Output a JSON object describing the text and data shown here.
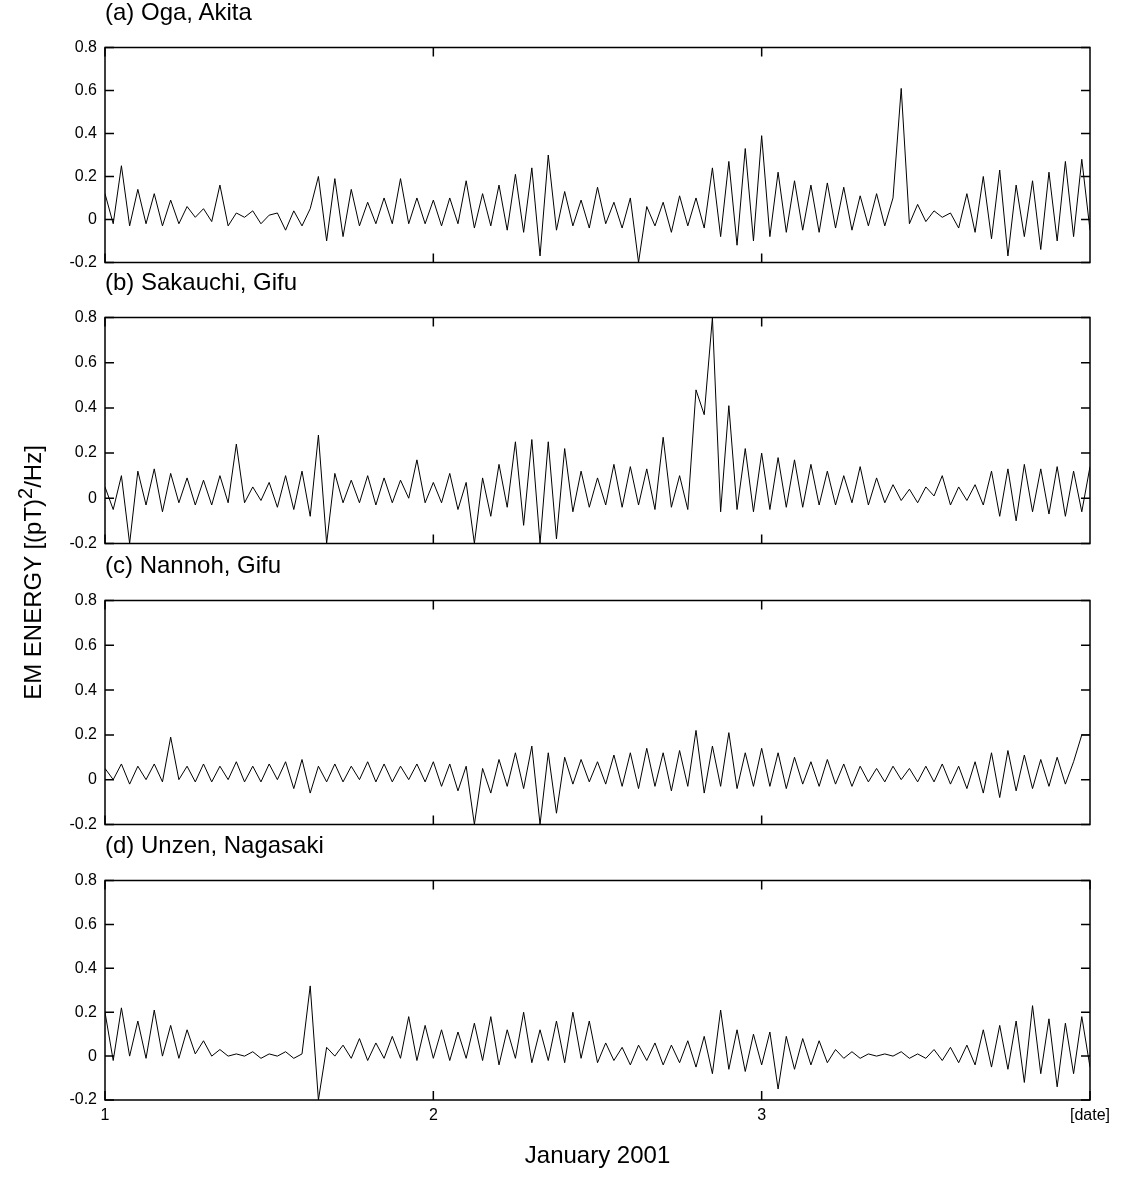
{
  "chart_data": [
    {
      "type": "line",
      "title": "(a) Oga, Akita",
      "tick_labels": "y",
      "xlim": [
        1,
        4
      ],
      "xticks": [
        1,
        2,
        3
      ],
      "ylim": [
        -0.2,
        0.8
      ],
      "yticks": [
        -0.2,
        0,
        0.2,
        0.4,
        0.6,
        0.8
      ],
      "x": [
        1,
        1.025,
        1.05,
        1.075,
        1.1,
        1.125,
        1.15,
        1.175,
        1.2,
        1.225,
        1.25,
        1.275,
        1.3,
        1.325,
        1.35,
        1.375,
        1.4,
        1.425,
        1.45,
        1.475,
        1.5,
        1.525,
        1.55,
        1.575,
        1.6,
        1.625,
        1.65,
        1.675,
        1.7,
        1.725,
        1.75,
        1.775,
        1.8,
        1.825,
        1.85,
        1.875,
        1.9,
        1.925,
        1.95,
        1.975,
        2,
        2.025,
        2.05,
        2.075,
        2.1,
        2.125,
        2.15,
        2.175,
        2.2,
        2.225,
        2.25,
        2.275,
        2.3,
        2.325,
        2.35,
        2.375,
        2.4,
        2.425,
        2.45,
        2.475,
        2.5,
        2.525,
        2.55,
        2.575,
        2.6,
        2.625,
        2.65,
        2.675,
        2.7,
        2.725,
        2.75,
        2.775,
        2.8,
        2.825,
        2.85,
        2.875,
        2.9,
        2.925,
        2.95,
        2.975,
        3,
        3.025,
        3.05,
        3.075,
        3.1,
        3.125,
        3.15,
        3.175,
        3.2,
        3.225,
        3.25,
        3.275,
        3.3,
        3.325,
        3.35,
        3.375,
        3.4,
        3.425,
        3.45,
        3.475,
        3.5,
        3.525,
        3.55,
        3.575,
        3.6,
        3.625,
        3.65,
        3.675,
        3.7,
        3.725,
        3.75,
        3.775,
        3.8,
        3.825,
        3.85,
        3.875,
        3.9,
        3.925,
        3.95,
        3.975,
        4
      ],
      "series": [
        {
          "color": "#000000",
          "values": [
            0.12,
            -0.02,
            0.25,
            -0.03,
            0.14,
            -0.02,
            0.12,
            -0.03,
            0.09,
            -0.02,
            0.06,
            0.01,
            0.05,
            -0.01,
            0.16,
            -0.03,
            0.03,
            0.01,
            0.04,
            -0.02,
            0.02,
            0.03,
            -0.05,
            0.04,
            -0.03,
            0.05,
            0.2,
            -0.1,
            0.19,
            -0.08,
            0.14,
            -0.03,
            0.08,
            -0.02,
            0.1,
            -0.02,
            0.19,
            -0.02,
            0.1,
            -0.02,
            0.09,
            -0.03,
            0.1,
            -0.02,
            0.18,
            -0.04,
            0.12,
            -0.03,
            0.16,
            -0.05,
            0.21,
            -0.06,
            0.24,
            -0.17,
            0.3,
            -0.05,
            0.13,
            -0.03,
            0.09,
            -0.04,
            0.15,
            -0.02,
            0.08,
            -0.04,
            0.1,
            -0.2,
            0.06,
            -0.03,
            0.08,
            -0.06,
            0.11,
            -0.03,
            0.1,
            -0.04,
            0.24,
            -0.08,
            0.27,
            -0.12,
            0.33,
            -0.1,
            0.39,
            -0.08,
            0.22,
            -0.06,
            0.18,
            -0.05,
            0.16,
            -0.06,
            0.17,
            -0.04,
            0.15,
            -0.05,
            0.11,
            -0.03,
            0.12,
            -0.03,
            0.1,
            0.61,
            -0.02,
            0.07,
            -0.01,
            0.04,
            0.01,
            0.03,
            -0.04,
            0.12,
            -0.06,
            0.2,
            -0.09,
            0.23,
            -0.17,
            0.16,
            -0.08,
            0.18,
            -0.14,
            0.22,
            -0.1,
            0.27,
            -0.08,
            0.28,
            -0.05
          ]
        }
      ]
    },
    {
      "type": "line",
      "title": "(b) Sakauchi, Gifu",
      "ylabel": "EM ENERGY  [(pT)$^{2}$/Hz]",
      "tick_labels": "y",
      "xlim": [
        1,
        4
      ],
      "xticks": [
        1,
        2,
        3
      ],
      "ylim": [
        -0.2,
        0.8
      ],
      "yticks": [
        -0.2,
        0,
        0.2,
        0.4,
        0.6,
        0.8
      ],
      "x": [
        1,
        1.025,
        1.05,
        1.075,
        1.1,
        1.125,
        1.15,
        1.175,
        1.2,
        1.225,
        1.25,
        1.275,
        1.3,
        1.325,
        1.35,
        1.375,
        1.4,
        1.425,
        1.45,
        1.475,
        1.5,
        1.525,
        1.55,
        1.575,
        1.6,
        1.625,
        1.65,
        1.675,
        1.7,
        1.725,
        1.75,
        1.775,
        1.8,
        1.825,
        1.85,
        1.875,
        1.9,
        1.925,
        1.95,
        1.975,
        2,
        2.025,
        2.05,
        2.075,
        2.1,
        2.125,
        2.15,
        2.175,
        2.2,
        2.225,
        2.25,
        2.275,
        2.3,
        2.325,
        2.35,
        2.375,
        2.4,
        2.425,
        2.45,
        2.475,
        2.5,
        2.525,
        2.55,
        2.575,
        2.6,
        2.625,
        2.65,
        2.675,
        2.7,
        2.725,
        2.75,
        2.775,
        2.8,
        2.825,
        2.85,
        2.875,
        2.9,
        2.925,
        2.95,
        2.975,
        3,
        3.025,
        3.05,
        3.075,
        3.1,
        3.125,
        3.15,
        3.175,
        3.2,
        3.225,
        3.25,
        3.275,
        3.3,
        3.325,
        3.35,
        3.375,
        3.4,
        3.425,
        3.45,
        3.475,
        3.5,
        3.525,
        3.55,
        3.575,
        3.6,
        3.625,
        3.65,
        3.675,
        3.7,
        3.725,
        3.75,
        3.775,
        3.8,
        3.825,
        3.85,
        3.875,
        3.9,
        3.925,
        3.95,
        3.975,
        4
      ],
      "series": [
        {
          "color": "#000000",
          "values": [
            0.05,
            -0.05,
            0.1,
            -0.2,
            0.12,
            -0.03,
            0.13,
            -0.06,
            0.11,
            -0.02,
            0.09,
            -0.03,
            0.08,
            -0.03,
            0.1,
            -0.02,
            0.24,
            -0.02,
            0.05,
            -0.01,
            0.07,
            -0.04,
            0.1,
            -0.05,
            0.12,
            -0.08,
            0.28,
            -0.2,
            0.11,
            -0.02,
            0.08,
            -0.02,
            0.1,
            -0.03,
            0.09,
            -0.02,
            0.08,
            0.0,
            0.17,
            -0.02,
            0.07,
            -0.02,
            0.11,
            -0.05,
            0.07,
            -0.2,
            0.09,
            -0.08,
            0.15,
            -0.04,
            0.25,
            -0.12,
            0.26,
            -0.2,
            0.25,
            -0.18,
            0.22,
            -0.06,
            0.12,
            -0.04,
            0.09,
            -0.03,
            0.15,
            -0.04,
            0.14,
            -0.03,
            0.13,
            -0.05,
            0.27,
            -0.04,
            0.1,
            -0.05,
            0.48,
            0.37,
            0.8,
            -0.06,
            0.41,
            -0.05,
            0.22,
            -0.06,
            0.2,
            -0.05,
            0.18,
            -0.04,
            0.17,
            -0.04,
            0.15,
            -0.03,
            0.12,
            -0.03,
            0.1,
            -0.02,
            0.14,
            -0.03,
            0.09,
            -0.02,
            0.06,
            -0.01,
            0.04,
            -0.02,
            0.05,
            0.01,
            0.1,
            -0.03,
            0.05,
            -0.01,
            0.06,
            -0.03,
            0.12,
            -0.08,
            0.13,
            -0.1,
            0.15,
            -0.06,
            0.13,
            -0.07,
            0.14,
            -0.08,
            0.12,
            -0.06,
            0.14
          ]
        }
      ]
    },
    {
      "type": "line",
      "title": "(c) Nannoh, Gifu",
      "tick_labels": "y",
      "xlim": [
        1,
        4
      ],
      "xticks": [
        1,
        2,
        3
      ],
      "ylim": [
        -0.2,
        0.8
      ],
      "yticks": [
        -0.2,
        0,
        0.2,
        0.4,
        0.6,
        0.8
      ],
      "x": [
        1,
        1.025,
        1.05,
        1.075,
        1.1,
        1.125,
        1.15,
        1.175,
        1.2,
        1.225,
        1.25,
        1.275,
        1.3,
        1.325,
        1.35,
        1.375,
        1.4,
        1.425,
        1.45,
        1.475,
        1.5,
        1.525,
        1.55,
        1.575,
        1.6,
        1.625,
        1.65,
        1.675,
        1.7,
        1.725,
        1.75,
        1.775,
        1.8,
        1.825,
        1.85,
        1.875,
        1.9,
        1.925,
        1.95,
        1.975,
        2,
        2.025,
        2.05,
        2.075,
        2.1,
        2.125,
        2.15,
        2.175,
        2.2,
        2.225,
        2.25,
        2.275,
        2.3,
        2.325,
        2.35,
        2.375,
        2.4,
        2.425,
        2.45,
        2.475,
        2.5,
        2.525,
        2.55,
        2.575,
        2.6,
        2.625,
        2.65,
        2.675,
        2.7,
        2.725,
        2.75,
        2.775,
        2.8,
        2.825,
        2.85,
        2.875,
        2.9,
        2.925,
        2.95,
        2.975,
        3,
        3.025,
        3.05,
        3.075,
        3.1,
        3.125,
        3.15,
        3.175,
        3.2,
        3.225,
        3.25,
        3.275,
        3.3,
        3.325,
        3.35,
        3.375,
        3.4,
        3.425,
        3.45,
        3.475,
        3.5,
        3.525,
        3.55,
        3.575,
        3.6,
        3.625,
        3.65,
        3.675,
        3.7,
        3.725,
        3.75,
        3.775,
        3.8,
        3.825,
        3.85,
        3.875,
        3.9,
        3.925,
        3.95,
        3.975,
        4
      ],
      "series": [
        {
          "color": "#000000",
          "values": [
            0.05,
            0.0,
            0.07,
            -0.02,
            0.06,
            0.0,
            0.07,
            -0.01,
            0.19,
            0.0,
            0.06,
            -0.01,
            0.07,
            -0.01,
            0.06,
            0.0,
            0.08,
            -0.01,
            0.06,
            -0.01,
            0.07,
            0.0,
            0.08,
            -0.04,
            0.09,
            -0.06,
            0.06,
            -0.01,
            0.07,
            -0.01,
            0.06,
            0.0,
            0.08,
            -0.01,
            0.07,
            -0.01,
            0.06,
            0.0,
            0.07,
            -0.01,
            0.08,
            -0.03,
            0.07,
            -0.05,
            0.06,
            -0.2,
            0.05,
            -0.06,
            0.09,
            -0.03,
            0.12,
            -0.04,
            0.15,
            -0.2,
            0.12,
            -0.15,
            0.1,
            -0.02,
            0.09,
            -0.01,
            0.08,
            -0.02,
            0.11,
            -0.03,
            0.12,
            -0.04,
            0.14,
            -0.03,
            0.12,
            -0.05,
            0.13,
            -0.03,
            0.22,
            -0.06,
            0.15,
            -0.03,
            0.21,
            -0.04,
            0.12,
            -0.03,
            0.14,
            -0.03,
            0.12,
            -0.04,
            0.1,
            -0.02,
            0.08,
            -0.03,
            0.09,
            -0.02,
            0.07,
            -0.03,
            0.06,
            -0.01,
            0.05,
            -0.01,
            0.06,
            0.0,
            0.05,
            -0.01,
            0.06,
            -0.01,
            0.07,
            -0.02,
            0.06,
            -0.04,
            0.08,
            -0.06,
            0.12,
            -0.08,
            0.13,
            -0.05,
            0.11,
            -0.04,
            0.09,
            -0.03,
            0.1,
            -0.02,
            0.08,
            0.2,
            0.2
          ]
        }
      ]
    },
    {
      "type": "line",
      "title": "(d) Unzen, Nagasaki",
      "xlabel": "January 2001",
      "xlim": [
        1,
        4
      ],
      "xticks": [
        1,
        2,
        3,
        {
          "value": 4,
          "label": "[date]"
        }
      ],
      "ylim": [
        -0.2,
        0.8
      ],
      "yticks": [
        -0.2,
        0,
        0.2,
        0.4,
        0.6,
        0.8
      ],
      "x": [
        1,
        1.025,
        1.05,
        1.075,
        1.1,
        1.125,
        1.15,
        1.175,
        1.2,
        1.225,
        1.25,
        1.275,
        1.3,
        1.325,
        1.35,
        1.375,
        1.4,
        1.425,
        1.45,
        1.475,
        1.5,
        1.525,
        1.55,
        1.575,
        1.6,
        1.625,
        1.65,
        1.675,
        1.7,
        1.725,
        1.75,
        1.775,
        1.8,
        1.825,
        1.85,
        1.875,
        1.9,
        1.925,
        1.95,
        1.975,
        2,
        2.025,
        2.05,
        2.075,
        2.1,
        2.125,
        2.15,
        2.175,
        2.2,
        2.225,
        2.25,
        2.275,
        2.3,
        2.325,
        2.35,
        2.375,
        2.4,
        2.425,
        2.45,
        2.475,
        2.5,
        2.525,
        2.55,
        2.575,
        2.6,
        2.625,
        2.65,
        2.675,
        2.7,
        2.725,
        2.75,
        2.775,
        2.8,
        2.825,
        2.85,
        2.875,
        2.9,
        2.925,
        2.95,
        2.975,
        3,
        3.025,
        3.05,
        3.075,
        3.1,
        3.125,
        3.15,
        3.175,
        3.2,
        3.225,
        3.25,
        3.275,
        3.3,
        3.325,
        3.35,
        3.375,
        3.4,
        3.425,
        3.45,
        3.475,
        3.5,
        3.525,
        3.55,
        3.575,
        3.6,
        3.625,
        3.65,
        3.675,
        3.7,
        3.725,
        3.75,
        3.775,
        3.8,
        3.825,
        3.85,
        3.875,
        3.9,
        3.925,
        3.95,
        3.975,
        4
      ],
      "series": [
        {
          "color": "#000000",
          "values": [
            0.2,
            -0.02,
            0.22,
            0.0,
            0.16,
            -0.01,
            0.21,
            0.0,
            0.14,
            -0.01,
            0.12,
            0.01,
            0.07,
            0.0,
            0.03,
            0.0,
            0.01,
            0.0,
            0.02,
            -0.01,
            0.01,
            0.0,
            0.02,
            -0.01,
            0.01,
            0.32,
            -0.2,
            0.04,
            0.0,
            0.05,
            -0.01,
            0.08,
            -0.02,
            0.06,
            -0.01,
            0.09,
            -0.01,
            0.18,
            -0.02,
            0.14,
            -0.01,
            0.12,
            -0.02,
            0.11,
            -0.01,
            0.15,
            -0.02,
            0.18,
            -0.04,
            0.12,
            -0.01,
            0.2,
            -0.03,
            0.12,
            -0.02,
            0.16,
            -0.03,
            0.2,
            -0.01,
            0.16,
            -0.03,
            0.06,
            -0.02,
            0.04,
            -0.04,
            0.05,
            -0.02,
            0.06,
            -0.04,
            0.05,
            -0.03,
            0.07,
            -0.05,
            0.09,
            -0.08,
            0.21,
            -0.06,
            0.12,
            -0.07,
            0.1,
            -0.04,
            0.11,
            -0.15,
            0.09,
            -0.06,
            0.08,
            -0.04,
            0.07,
            -0.03,
            0.03,
            -0.01,
            0.02,
            -0.01,
            0.01,
            0.0,
            0.01,
            0.0,
            0.02,
            -0.01,
            0.01,
            -0.01,
            0.03,
            -0.02,
            0.04,
            -0.03,
            0.05,
            -0.04,
            0.12,
            -0.05,
            0.14,
            -0.06,
            0.16,
            -0.12,
            0.23,
            -0.08,
            0.17,
            -0.14,
            0.15,
            -0.08,
            0.18,
            -0.05
          ]
        }
      ]
    }
  ]
}
